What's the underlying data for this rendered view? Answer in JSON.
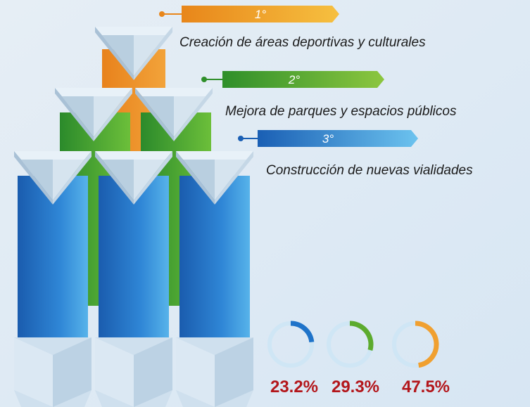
{
  "rankings": [
    {
      "rank": "1°",
      "label": "Creación de áreas deportivas y culturales"
    },
    {
      "rank": "2°",
      "label": "Mejora de parques y espacios públicos"
    },
    {
      "rank": "3°",
      "label": "Construcción de nuevas vialidades"
    }
  ],
  "chart_data": {
    "type": "donut",
    "values": [
      23.2,
      29.3,
      47.5
    ],
    "value_labels": [
      "23.2%",
      "29.3%",
      "47.5%"
    ],
    "colors": [
      "#1f73c9",
      "#5cab2e",
      "#f0a030"
    ]
  }
}
